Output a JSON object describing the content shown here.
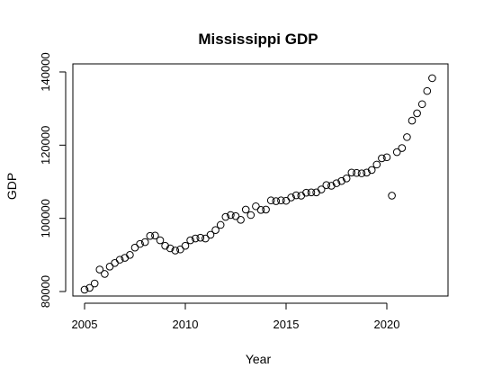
{
  "chart_data": {
    "type": "scatter",
    "title": "Mississippi GDP",
    "xlabel": "Year",
    "ylabel": "GDP",
    "xlim": [
      2005,
      2022.25
    ],
    "ylim": [
      80000,
      140000
    ],
    "xticks": [
      2005,
      2010,
      2015,
      2020
    ],
    "yticks": [
      80000,
      100000,
      120000,
      140000
    ],
    "grid": false,
    "legend": "none",
    "marker": "open-circle",
    "points": {
      "x": [
        2005,
        2005.25,
        2005.5,
        2005.75,
        2006,
        2006.25,
        2006.5,
        2006.75,
        2007,
        2007.25,
        2007.5,
        2007.75,
        2008,
        2008.25,
        2008.5,
        2008.75,
        2009,
        2009.25,
        2009.5,
        2009.75,
        2010,
        2010.25,
        2010.5,
        2010.75,
        2011,
        2011.25,
        2011.5,
        2011.75,
        2012,
        2012.25,
        2012.5,
        2012.75,
        2013,
        2013.25,
        2013.5,
        2013.75,
        2014,
        2014.25,
        2014.5,
        2014.75,
        2015,
        2015.25,
        2015.5,
        2015.75,
        2016,
        2016.25,
        2016.5,
        2016.75,
        2017,
        2017.25,
        2017.5,
        2017.75,
        2018,
        2018.25,
        2018.5,
        2018.75,
        2019,
        2019.25,
        2019.5,
        2019.75,
        2020,
        2020.25,
        2020.5,
        2020.75,
        2021,
        2021.25,
        2021.5,
        2021.75,
        2022,
        2022.25
      ],
      "y": [
        80500,
        81000,
        82200,
        86000,
        84800,
        86800,
        87800,
        88700,
        89200,
        90000,
        92000,
        93000,
        93500,
        95200,
        95300,
        94000,
        92500,
        91800,
        91200,
        91500,
        92500,
        94000,
        94500,
        94700,
        94500,
        95500,
        96800,
        98200,
        100400,
        100900,
        100600,
        99600,
        102400,
        100900,
        103300,
        102300,
        102400,
        104900,
        104700,
        104900,
        104800,
        105700,
        106300,
        106200,
        107000,
        107100,
        107100,
        107900,
        109100,
        108900,
        109600,
        110200,
        110900,
        112500,
        112400,
        112300,
        112500,
        113200,
        114700,
        116400,
        116700,
        106200,
        118100,
        119200,
        122200,
        126700,
        128700,
        131200,
        134800,
        138300
      ]
    }
  }
}
